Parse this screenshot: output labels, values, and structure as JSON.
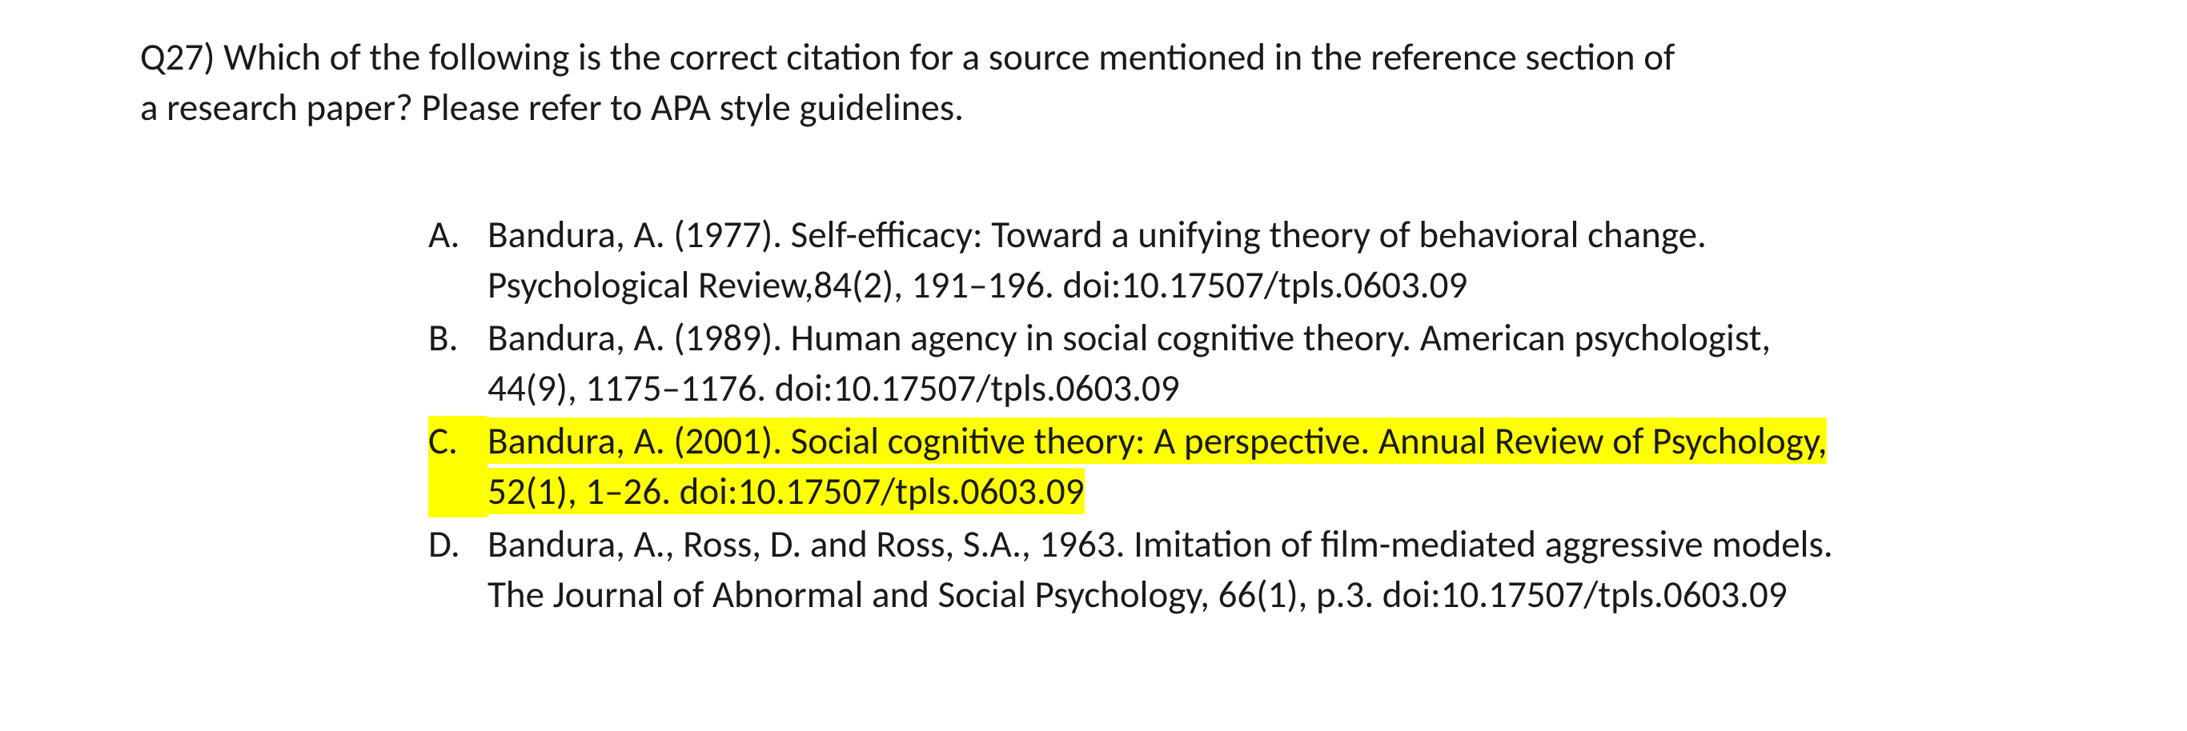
{
  "question": {
    "number": "Q27)",
    "prompt_line_1": "Q27) Which of the following is the correct citation for a source mentioned in the reference section of",
    "prompt_line_2": "a research paper? Please refer to APA style guidelines."
  },
  "options": [
    {
      "marker": "A.",
      "line_1": "Bandura, A. (1977). Self-efficacy: Toward a unifying theory of behavioral change.",
      "line_2": "Psychological Review,84(2), 191–196. doi:10.17507/tpls.0603.09",
      "highlighted": false
    },
    {
      "marker": "B.",
      "line_1": "Bandura, A. (1989). Human agency in social cognitive theory. American psychologist,",
      "line_2": "44(9), 1175–1176. doi:10.17507/tpls.0603.09",
      "highlighted": false
    },
    {
      "marker": "C.",
      "line_1": "Bandura, A. (2001). Social cognitive theory: A perspective. Annual Review of Psychology,",
      "line_2": "52(1), 1–26. doi:10.17507/tpls.0603.09",
      "highlighted": true
    },
    {
      "marker": "D.",
      "line_1": "Bandura, A., Ross, D. and Ross, S.A., 1963. Imitation of film-mediated aggressive models.",
      "line_2": "The Journal of Abnormal and Social Psychology, 66(1), p.3. doi:10.17507/tpls.0603.09",
      "highlighted": false
    }
  ],
  "highlight_color": "#ffff00",
  "text_color": "#1a1a1a",
  "background_color": "#ffffff"
}
